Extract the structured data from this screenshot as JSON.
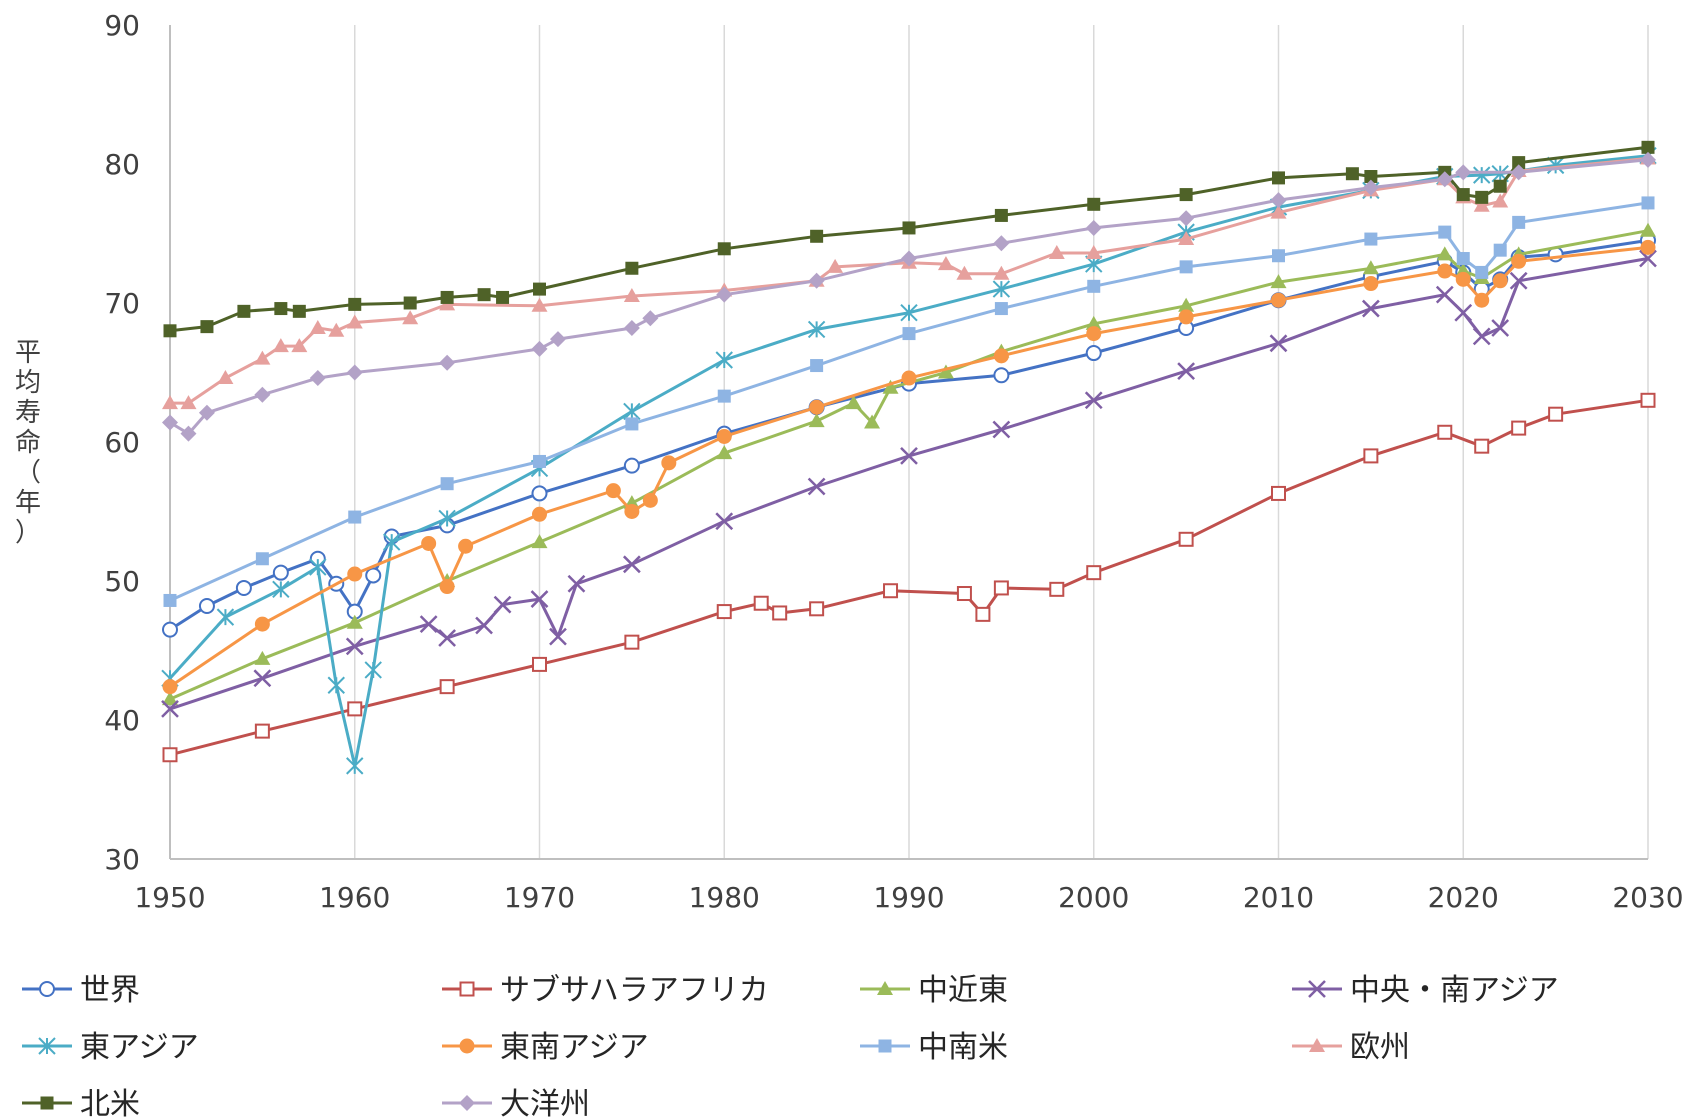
{
  "chart_data": {
    "type": "line",
    "title": "",
    "xlabel": "",
    "ylabel": "平均寿命（年）",
    "xlim": [
      1950,
      2030
    ],
    "ylim": [
      30,
      90
    ],
    "x_ticks": [
      1950,
      1960,
      1970,
      1980,
      1990,
      2000,
      2010,
      2020,
      2030
    ],
    "y_ticks": [
      30,
      40,
      50,
      60,
      70,
      80,
      90
    ],
    "grid": "vertical",
    "legend_position": "bottom",
    "series": [
      {
        "name": "世界",
        "color": "#4472C4",
        "marker": "circle-open",
        "points": [
          [
            1950,
            46.5
          ],
          [
            1952,
            48.2
          ],
          [
            1954,
            49.5
          ],
          [
            1956,
            50.6
          ],
          [
            1958,
            51.6
          ],
          [
            1959,
            49.8
          ],
          [
            1960,
            47.8
          ],
          [
            1961,
            50.4
          ],
          [
            1962,
            53.2
          ],
          [
            1965,
            54.0
          ],
          [
            1970,
            56.3
          ],
          [
            1975,
            58.3
          ],
          [
            1980,
            60.6
          ],
          [
            1985,
            62.5
          ],
          [
            1990,
            64.2
          ],
          [
            1995,
            64.8
          ],
          [
            2000,
            66.4
          ],
          [
            2005,
            68.2
          ],
          [
            2010,
            70.2
          ],
          [
            2015,
            71.9
          ],
          [
            2019,
            73.0
          ],
          [
            2020,
            72.2
          ],
          [
            2021,
            71.0
          ],
          [
            2022,
            71.7
          ],
          [
            2023,
            73.3
          ],
          [
            2025,
            73.5
          ],
          [
            2030,
            74.5
          ]
        ]
      },
      {
        "name": "サブサハラアフリカ",
        "color": "#C0504D",
        "marker": "square-open",
        "points": [
          [
            1950,
            37.5
          ],
          [
            1955,
            39.2
          ],
          [
            1960,
            40.8
          ],
          [
            1965,
            42.4
          ],
          [
            1970,
            44.0
          ],
          [
            1975,
            45.6
          ],
          [
            1980,
            47.8
          ],
          [
            1982,
            48.4
          ],
          [
            1983,
            47.7
          ],
          [
            1985,
            48.0
          ],
          [
            1989,
            49.3
          ],
          [
            1993,
            49.1
          ],
          [
            1994,
            47.6
          ],
          [
            1995,
            49.5
          ],
          [
            1998,
            49.4
          ],
          [
            2000,
            50.6
          ],
          [
            2005,
            53.0
          ],
          [
            2010,
            56.3
          ],
          [
            2015,
            59.0
          ],
          [
            2019,
            60.7
          ],
          [
            2021,
            59.7
          ],
          [
            2023,
            61.0
          ],
          [
            2025,
            62.0
          ],
          [
            2030,
            63.0
          ]
        ]
      },
      {
        "name": "中近東",
        "color": "#9BBB59",
        "marker": "triangle",
        "points": [
          [
            1950,
            41.5
          ],
          [
            1955,
            44.4
          ],
          [
            1960,
            47.0
          ],
          [
            1965,
            50.0
          ],
          [
            1970,
            52.8
          ],
          [
            1975,
            55.6
          ],
          [
            1980,
            59.2
          ],
          [
            1985,
            61.5
          ],
          [
            1987,
            62.8
          ],
          [
            1988,
            61.4
          ],
          [
            1989,
            63.9
          ],
          [
            1992,
            65.0
          ],
          [
            1995,
            66.5
          ],
          [
            2000,
            68.5
          ],
          [
            2005,
            69.8
          ],
          [
            2010,
            71.5
          ],
          [
            2015,
            72.5
          ],
          [
            2019,
            73.5
          ],
          [
            2020,
            72.3
          ],
          [
            2021,
            71.8
          ],
          [
            2023,
            73.5
          ],
          [
            2030,
            75.2
          ]
        ]
      },
      {
        "name": "中央・南アジア",
        "color": "#7F5FA4",
        "marker": "cross",
        "points": [
          [
            1950,
            40.8
          ],
          [
            1955,
            43.0
          ],
          [
            1960,
            45.3
          ],
          [
            1964,
            46.9
          ],
          [
            1965,
            45.9
          ],
          [
            1967,
            46.8
          ],
          [
            1968,
            48.3
          ],
          [
            1970,
            48.7
          ],
          [
            1971,
            46.0
          ],
          [
            1972,
            49.8
          ],
          [
            1975,
            51.2
          ],
          [
            1980,
            54.3
          ],
          [
            1985,
            56.8
          ],
          [
            1990,
            59.0
          ],
          [
            1995,
            60.9
          ],
          [
            2000,
            63.0
          ],
          [
            2005,
            65.1
          ],
          [
            2010,
            67.1
          ],
          [
            2015,
            69.6
          ],
          [
            2019,
            70.6
          ],
          [
            2020,
            69.3
          ],
          [
            2021,
            67.6
          ],
          [
            2022,
            68.2
          ],
          [
            2023,
            71.6
          ],
          [
            2030,
            73.2
          ]
        ]
      },
      {
        "name": "東アジア",
        "color": "#4BACC6",
        "marker": "star",
        "points": [
          [
            1950,
            43.0
          ],
          [
            1953,
            47.4
          ],
          [
            1956,
            49.4
          ],
          [
            1958,
            51.0
          ],
          [
            1959,
            42.5
          ],
          [
            1960,
            36.7
          ],
          [
            1961,
            43.6
          ],
          [
            1962,
            52.8
          ],
          [
            1965,
            54.5
          ],
          [
            1970,
            58.1
          ],
          [
            1975,
            62.2
          ],
          [
            1980,
            65.9
          ],
          [
            1985,
            68.1
          ],
          [
            1990,
            69.3
          ],
          [
            1995,
            71.0
          ],
          [
            2000,
            72.8
          ],
          [
            2005,
            75.1
          ],
          [
            2010,
            76.9
          ],
          [
            2015,
            78.1
          ],
          [
            2019,
            79.1
          ],
          [
            2021,
            79.2
          ],
          [
            2022,
            79.3
          ],
          [
            2025,
            79.9
          ],
          [
            2030,
            80.6
          ]
        ]
      },
      {
        "name": "東南アジア",
        "color": "#F79646",
        "marker": "circle",
        "points": [
          [
            1950,
            42.4
          ],
          [
            1955,
            46.9
          ],
          [
            1960,
            50.5
          ],
          [
            1964,
            52.7
          ],
          [
            1965,
            49.6
          ],
          [
            1966,
            52.5
          ],
          [
            1970,
            54.8
          ],
          [
            1974,
            56.5
          ],
          [
            1975,
            55.0
          ],
          [
            1976,
            55.8
          ],
          [
            1977,
            58.5
          ],
          [
            1980,
            60.4
          ],
          [
            1985,
            62.5
          ],
          [
            1990,
            64.6
          ],
          [
            1995,
            66.2
          ],
          [
            2000,
            67.8
          ],
          [
            2005,
            69.0
          ],
          [
            2010,
            70.2
          ],
          [
            2015,
            71.4
          ],
          [
            2019,
            72.3
          ],
          [
            2020,
            71.7
          ],
          [
            2021,
            70.2
          ],
          [
            2022,
            71.6
          ],
          [
            2023,
            73.0
          ],
          [
            2030,
            74.0
          ]
        ]
      },
      {
        "name": "中南米",
        "color": "#8EB4E3",
        "marker": "square",
        "points": [
          [
            1950,
            48.6
          ],
          [
            1955,
            51.6
          ],
          [
            1960,
            54.6
          ],
          [
            1965,
            57.0
          ],
          [
            1970,
            58.6
          ],
          [
            1975,
            61.3
          ],
          [
            1980,
            63.3
          ],
          [
            1985,
            65.5
          ],
          [
            1990,
            67.8
          ],
          [
            1995,
            69.6
          ],
          [
            2000,
            71.2
          ],
          [
            2005,
            72.6
          ],
          [
            2010,
            73.4
          ],
          [
            2015,
            74.6
          ],
          [
            2019,
            75.1
          ],
          [
            2020,
            73.2
          ],
          [
            2021,
            72.2
          ],
          [
            2022,
            73.8
          ],
          [
            2023,
            75.8
          ],
          [
            2030,
            77.2
          ]
        ]
      },
      {
        "name": "欧州",
        "color": "#E6A09D",
        "marker": "triangle",
        "points": [
          [
            1950,
            62.8
          ],
          [
            1951,
            62.8
          ],
          [
            1953,
            64.6
          ],
          [
            1955,
            66.0
          ],
          [
            1956,
            66.9
          ],
          [
            1957,
            66.9
          ],
          [
            1958,
            68.2
          ],
          [
            1959,
            68.0
          ],
          [
            1960,
            68.6
          ],
          [
            1963,
            68.9
          ],
          [
            1965,
            69.9
          ],
          [
            1970,
            69.8
          ],
          [
            1975,
            70.5
          ],
          [
            1980,
            70.9
          ],
          [
            1985,
            71.6
          ],
          [
            1986,
            72.6
          ],
          [
            1990,
            72.9
          ],
          [
            1992,
            72.8
          ],
          [
            1993,
            72.1
          ],
          [
            1995,
            72.1
          ],
          [
            1998,
            73.6
          ],
          [
            2000,
            73.6
          ],
          [
            2005,
            74.6
          ],
          [
            2010,
            76.5
          ],
          [
            2015,
            78.1
          ],
          [
            2019,
            78.9
          ],
          [
            2020,
            77.6
          ],
          [
            2021,
            77.0
          ],
          [
            2022,
            77.3
          ],
          [
            2023,
            79.5
          ],
          [
            2030,
            80.4
          ]
        ]
      },
      {
        "name": "北米",
        "color": "#4F6228",
        "marker": "square",
        "points": [
          [
            1950,
            68.0
          ],
          [
            1952,
            68.3
          ],
          [
            1954,
            69.4
          ],
          [
            1956,
            69.6
          ],
          [
            1957,
            69.4
          ],
          [
            1960,
            69.9
          ],
          [
            1963,
            70.0
          ],
          [
            1965,
            70.4
          ],
          [
            1967,
            70.6
          ],
          [
            1968,
            70.4
          ],
          [
            1970,
            71.0
          ],
          [
            1975,
            72.5
          ],
          [
            1980,
            73.9
          ],
          [
            1985,
            74.8
          ],
          [
            1990,
            75.4
          ],
          [
            1995,
            76.3
          ],
          [
            2000,
            77.1
          ],
          [
            2005,
            77.8
          ],
          [
            2010,
            79.0
          ],
          [
            2014,
            79.3
          ],
          [
            2015,
            79.1
          ],
          [
            2019,
            79.4
          ],
          [
            2020,
            77.8
          ],
          [
            2021,
            77.6
          ],
          [
            2022,
            78.4
          ],
          [
            2023,
            80.1
          ],
          [
            2030,
            81.2
          ]
        ]
      },
      {
        "name": "大洋州",
        "color": "#B3A2C7",
        "marker": "diamond",
        "points": [
          [
            1950,
            61.4
          ],
          [
            1951,
            60.6
          ],
          [
            1952,
            62.1
          ],
          [
            1955,
            63.4
          ],
          [
            1958,
            64.6
          ],
          [
            1960,
            65.0
          ],
          [
            1965,
            65.7
          ],
          [
            1970,
            66.7
          ],
          [
            1971,
            67.4
          ],
          [
            1975,
            68.2
          ],
          [
            1976,
            68.9
          ],
          [
            1980,
            70.6
          ],
          [
            1985,
            71.6
          ],
          [
            1990,
            73.2
          ],
          [
            1995,
            74.3
          ],
          [
            2000,
            75.4
          ],
          [
            2005,
            76.1
          ],
          [
            2010,
            77.4
          ],
          [
            2015,
            78.3
          ],
          [
            2019,
            78.9
          ],
          [
            2020,
            79.4
          ],
          [
            2023,
            79.4
          ],
          [
            2030,
            80.3
          ]
        ]
      }
    ]
  }
}
